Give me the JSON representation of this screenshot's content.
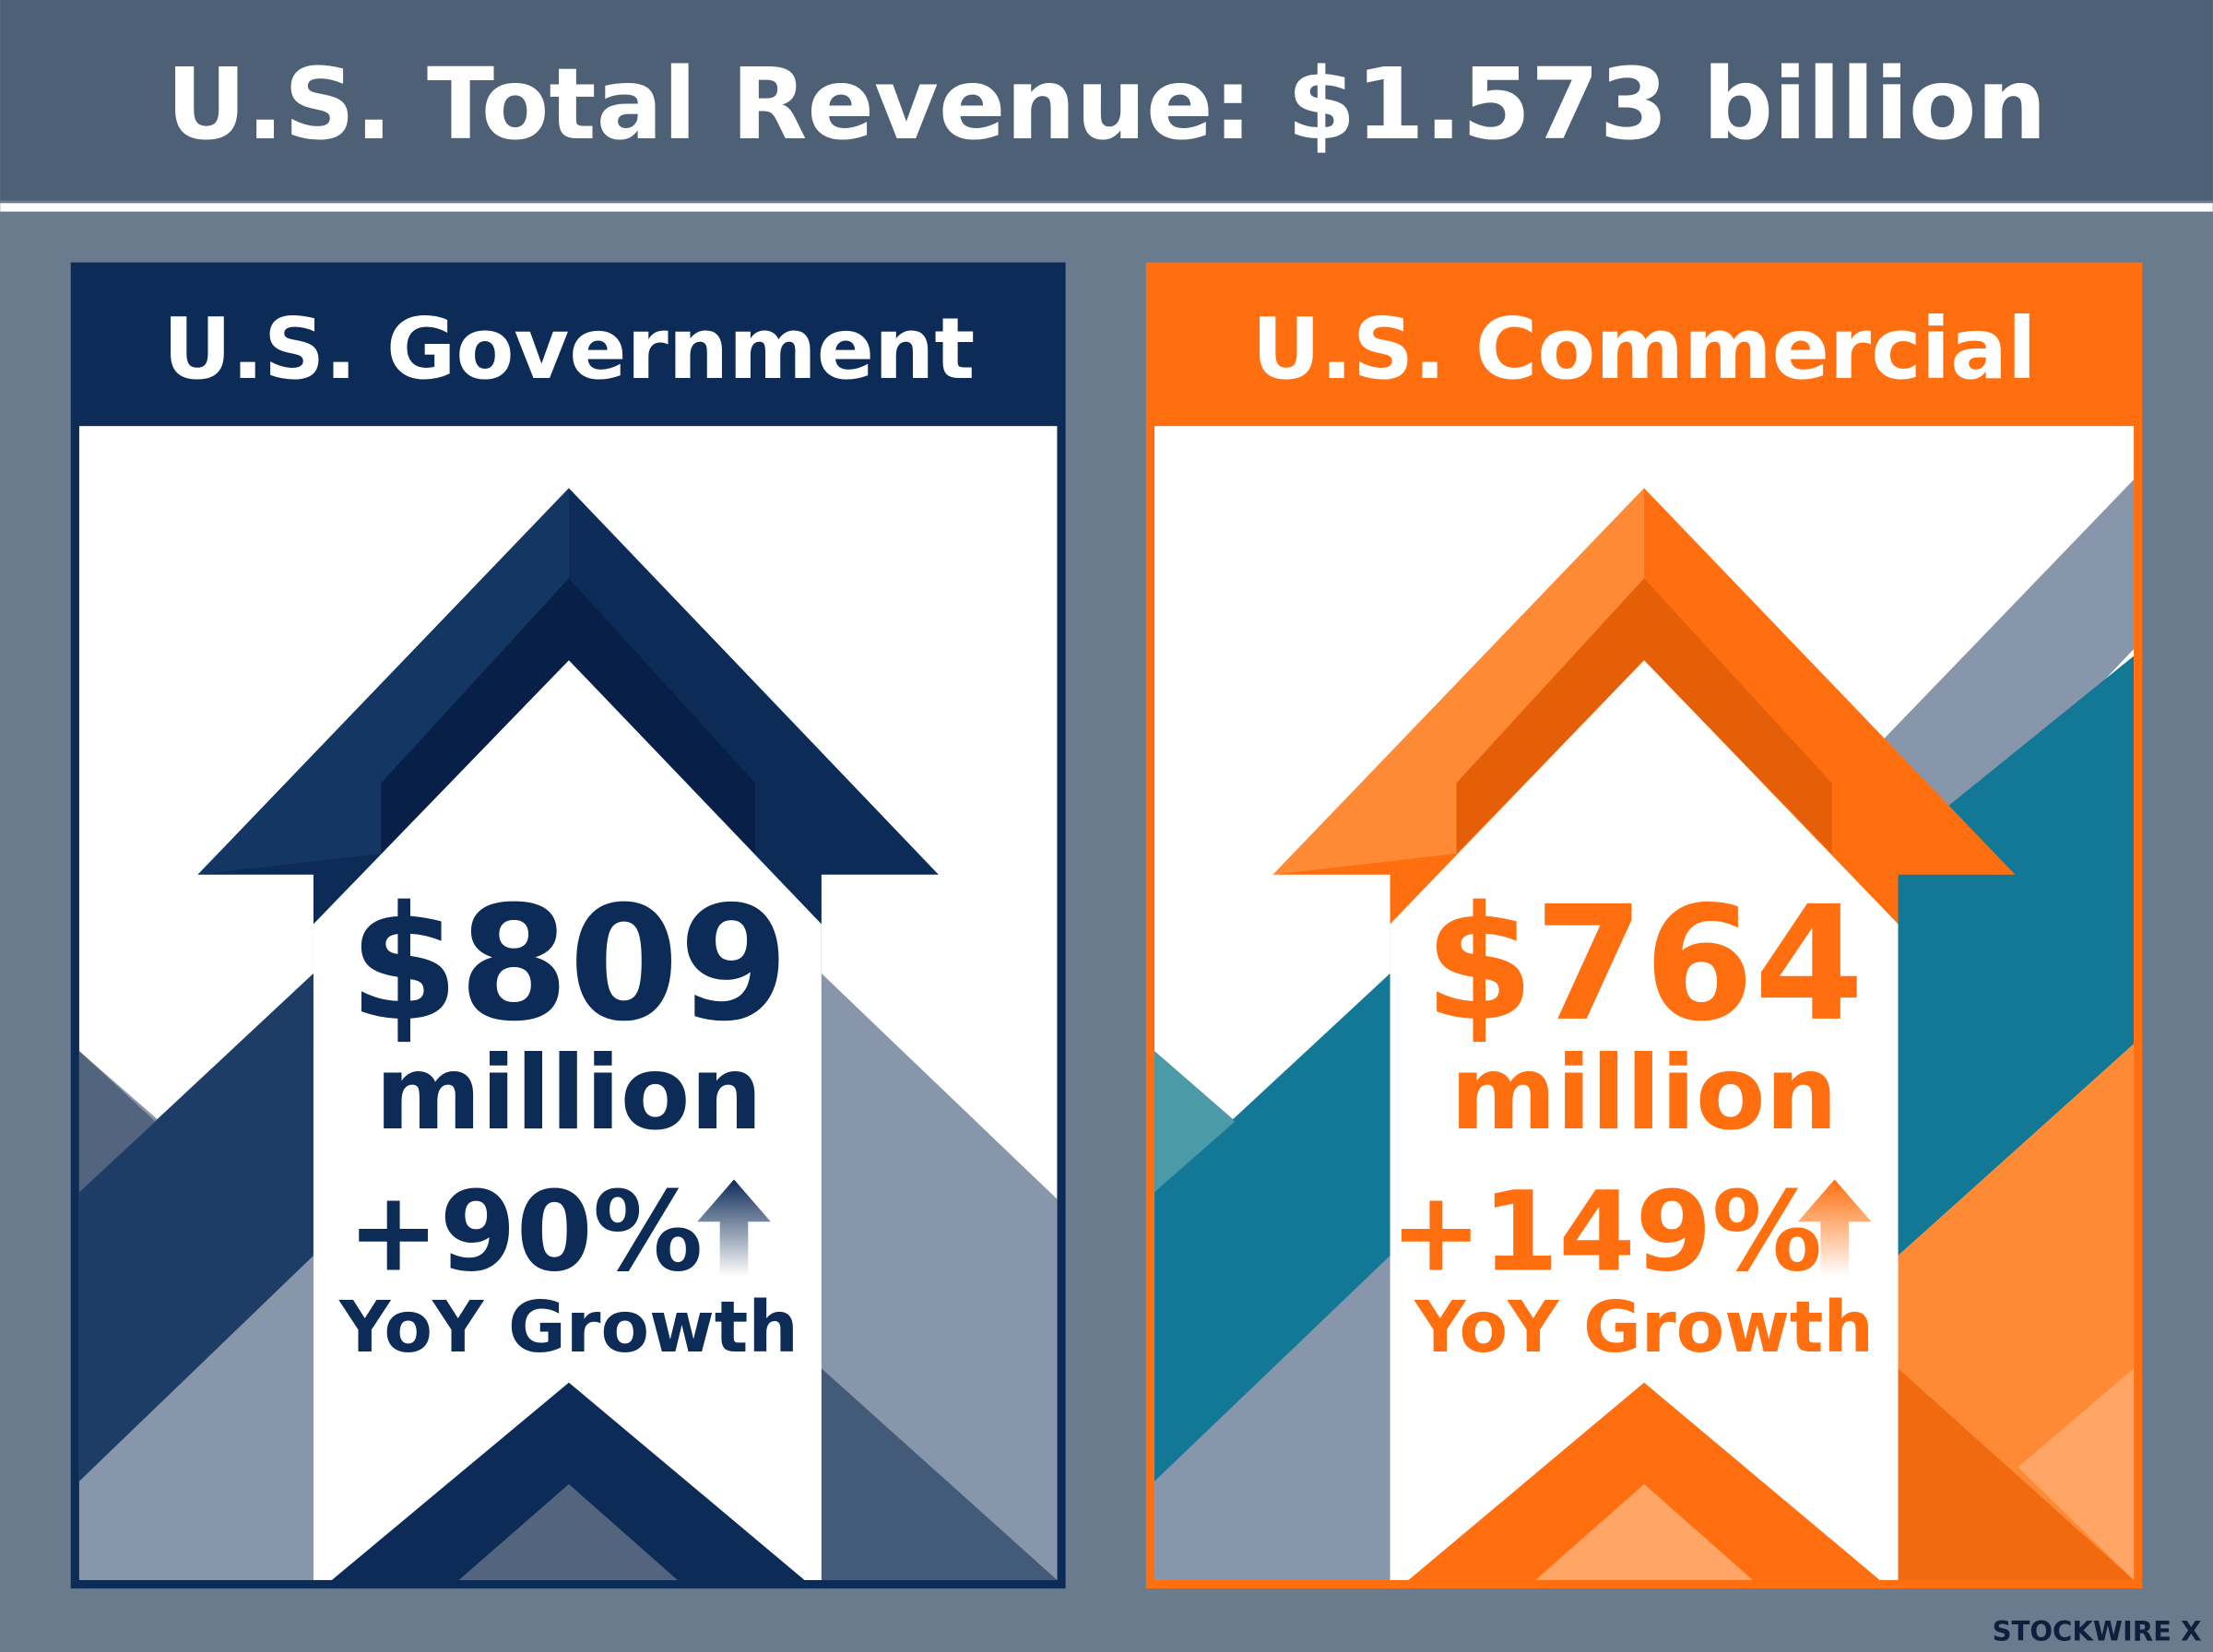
{
  "header": {
    "title": "U.S. Total Revenue: $1.573 billion"
  },
  "panels": [
    {
      "title": "U.S. Government",
      "amount": "$809",
      "unit": "million",
      "growth": "+90%",
      "growth_label": "YoY Growth"
    },
    {
      "title": "U.S. Commercial",
      "amount": "$764",
      "unit": "million",
      "growth": "+149%",
      "growth_label": "YoY Growth"
    }
  ],
  "footer": {
    "brand": "STOCKWIRE X"
  }
}
